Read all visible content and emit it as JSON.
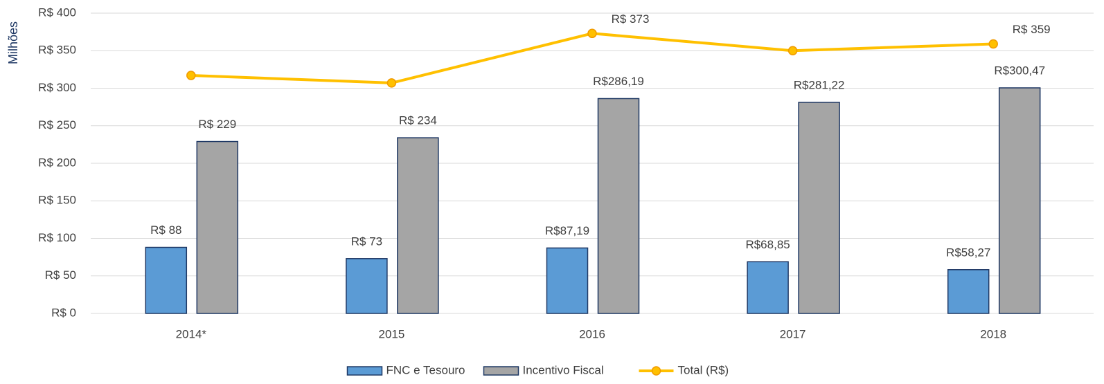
{
  "chart_data": {
    "type": "bar",
    "y_label": "Milhões",
    "categories": [
      "2014*",
      "2015",
      "2016",
      "2017",
      "2018"
    ],
    "series": [
      {
        "name": "FNC e Tesouro",
        "type": "bar",
        "color": "#5b9bd5",
        "values": [
          88,
          73,
          87.19,
          68.85,
          58.27
        ],
        "value_labels": [
          "R$ 88",
          "R$ 73",
          "R$87,19",
          "R$68,85",
          "R$58,27"
        ]
      },
      {
        "name": "Incentivo Fiscal",
        "type": "bar",
        "color": "#a5a5a5",
        "values": [
          229,
          234,
          286.19,
          281.22,
          300.47
        ],
        "value_labels": [
          "R$ 229",
          "R$ 234",
          "R$286,19",
          "R$281,22",
          "R$300,47"
        ]
      },
      {
        "name": "Total (R$)",
        "type": "line",
        "color": "#ffc000",
        "values": [
          317,
          307,
          373,
          350,
          359
        ],
        "value_labels": [
          null,
          null,
          "R$ 373",
          null,
          "R$ 359"
        ]
      }
    ],
    "ylim": [
      0,
      400
    ],
    "yticks": [
      {
        "value": 0,
        "label": "R$ 0"
      },
      {
        "value": 50,
        "label": "R$ 50"
      },
      {
        "value": 100,
        "label": "R$ 100"
      },
      {
        "value": 150,
        "label": "R$ 150"
      },
      {
        "value": 200,
        "label": "R$ 200"
      },
      {
        "value": 250,
        "label": "R$ 250"
      },
      {
        "value": 300,
        "label": "R$ 300"
      },
      {
        "value": 350,
        "label": "R$ 350"
      },
      {
        "value": 400,
        "label": "R$ 400"
      }
    ],
    "grid": true,
    "legend": "bottom"
  }
}
